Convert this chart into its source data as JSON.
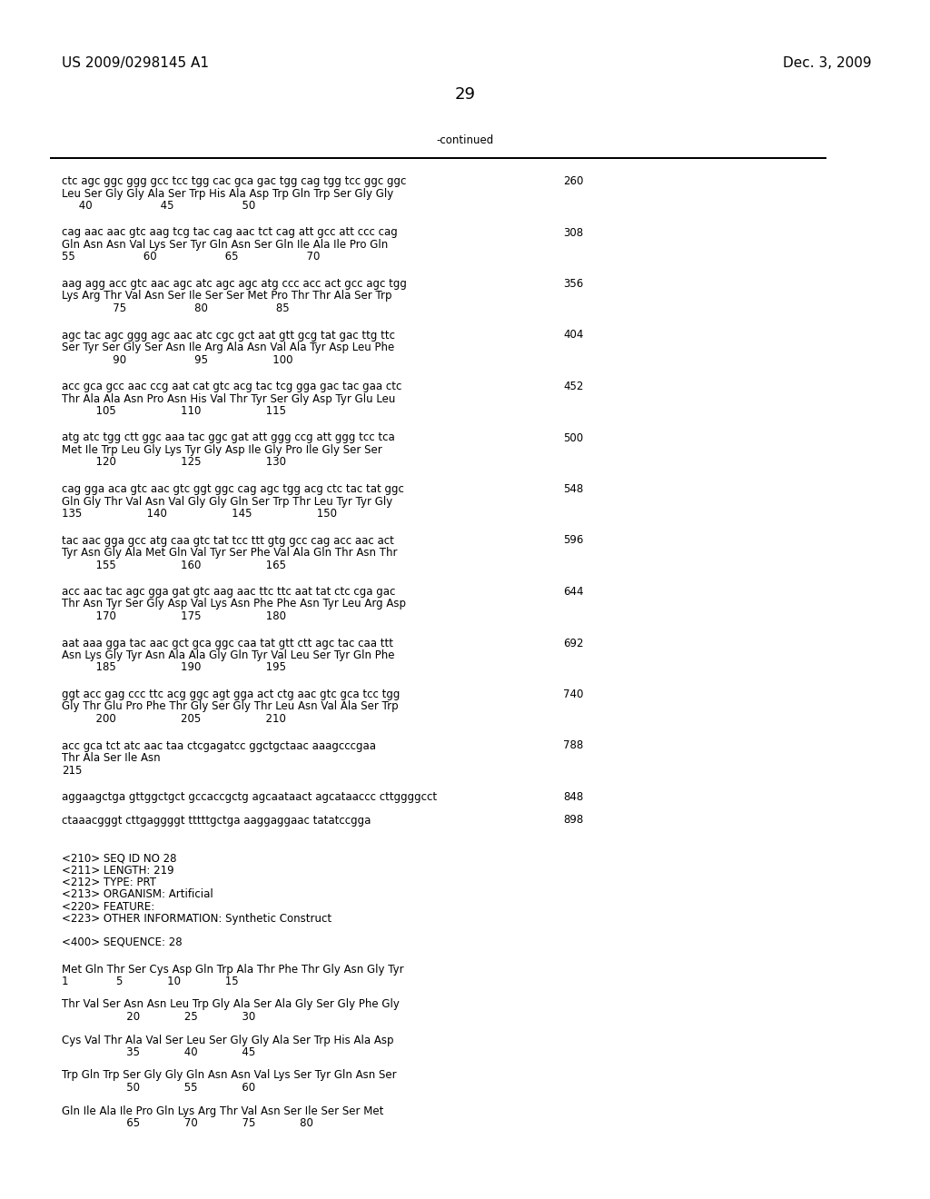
{
  "header_left": "US 2009/0298145 A1",
  "header_right": "Dec. 3, 2009",
  "page_number": "29",
  "continued_label": "-continued",
  "background_color": "#ffffff",
  "text_color": "#000000",
  "mono_font": "Courier New",
  "sans_font": "DejaVu Sans",
  "header_fontsize": 11,
  "page_fontsize": 13,
  "body_fontsize": 8.5,
  "seq_blocks": [
    {
      "dna": "ctc agc ggc ggg gcc tcc tgg cac gca gac tgg cag tgg tcc ggc ggc",
      "aa": "Leu Ser Gly Gly Ala Ser Trp His Ala Asp Trp Gln Trp Ser Gly Gly",
      "nums": "     40                    45                    50",
      "num_right": "260"
    },
    {
      "dna": "cag aac aac gtc aag tcg tac cag aac tct cag att gcc att ccc cag",
      "aa": "Gln Asn Asn Val Lys Ser Tyr Gln Asn Ser Gln Ile Ala Ile Pro Gln",
      "nums": "55                    60                    65                    70",
      "num_right": "308"
    },
    {
      "dna": "aag agg acc gtc aac agc atc agc agc atg ccc acc act gcc agc tgg",
      "aa": "Lys Arg Thr Val Asn Ser Ile Ser Ser Met Pro Thr Thr Ala Ser Trp",
      "nums": "               75                    80                    85",
      "num_right": "356"
    },
    {
      "dna": "agc tac agc ggg agc aac atc cgc gct aat gtt gcg tat gac ttg ttc",
      "aa": "Ser Tyr Ser Gly Ser Asn Ile Arg Ala Asn Val Ala Tyr Asp Leu Phe",
      "nums": "               90                    95                   100",
      "num_right": "404"
    },
    {
      "dna": "acc gca gcc aac ccg aat cat gtc acg tac tcg gga gac tac gaa ctc",
      "aa": "Thr Ala Ala Asn Pro Asn His Val Thr Tyr Ser Gly Asp Tyr Glu Leu",
      "nums": "          105                   110                   115",
      "num_right": "452"
    },
    {
      "dna": "atg atc tgg ctt ggc aaa tac ggc gat att ggg ccg att ggg tcc tca",
      "aa": "Met Ile Trp Leu Gly Lys Tyr Gly Asp Ile Gly Pro Ile Gly Ser Ser",
      "nums": "          120                   125                   130",
      "num_right": "500"
    },
    {
      "dna": "cag gga aca gtc aac gtc ggt ggc cag agc tgg acg ctc tac tat ggc",
      "aa": "Gln Gly Thr Val Asn Val Gly Gly Gln Ser Trp Thr Leu Tyr Tyr Gly",
      "nums": "135                   140                   145                   150",
      "num_right": "548"
    },
    {
      "dna": "tac aac gga gcc atg caa gtc tat tcc ttt gtg gcc cag acc aac act",
      "aa": "Tyr Asn Gly Ala Met Gln Val Tyr Ser Phe Val Ala Gln Thr Asn Thr",
      "nums": "          155                   160                   165",
      "num_right": "596"
    },
    {
      "dna": "acc aac tac agc gga gat gtc aag aac ttc ttc aat tat ctc cga gac",
      "aa": "Thr Asn Tyr Ser Gly Asp Val Lys Asn Phe Phe Asn Tyr Leu Arg Asp",
      "nums": "          170                   175                   180",
      "num_right": "644"
    },
    {
      "dna": "aat aaa gga tac aac gct gca ggc caa tat gtt ctt agc tac caa ttt",
      "aa": "Asn Lys Gly Tyr Asn Ala Ala Gly Gln Tyr Val Leu Ser Tyr Gln Phe",
      "nums": "          185                   190                   195",
      "num_right": "692"
    },
    {
      "dna": "ggt acc gag ccc ttc acg ggc agt gga act ctg aac gtc gca tcc tgg",
      "aa": "Gly Thr Glu Pro Phe Thr Gly Ser Gly Thr Leu Asn Val Ala Ser Trp",
      "nums": "          200                   205                   210",
      "num_right": "740"
    },
    {
      "dna": "acc gca tct atc aac taa ctcgagatcc ggctgctaac aaagcccgaa",
      "aa": "Thr Ala Ser Ile Asn",
      "nums": "215",
      "num_right": "788"
    }
  ],
  "dna_only_blocks": [
    {
      "dna": "aggaagctga gttggctgct gccaccgctg agcaataact agcataaccc cttggggcct",
      "num_right": "848"
    },
    {
      "dna": "ctaaacgggt cttgaggggt tttttgctga aaggaggaac tatatccgga",
      "num_right": "898"
    }
  ],
  "meta_lines": [
    "<210> SEQ ID NO 28",
    "<211> LENGTH: 219",
    "<212> TYPE: PRT",
    "<213> ORGANISM: Artificial",
    "<220> FEATURE:",
    "<223> OTHER INFORMATION: Synthetic Construct"
  ],
  "seq400_label": "<400> SEQUENCE: 28",
  "prot_blocks": [
    {
      "seq": "Met Gln Thr Ser Cys Asp Gln Trp Ala Thr Phe Thr Gly Asn Gly Tyr",
      "nums": "1              5             10             15"
    },
    {
      "seq": "Thr Val Ser Asn Asn Leu Trp Gly Ala Ser Ala Gly Ser Gly Phe Gly",
      "nums": "                   20             25             30"
    },
    {
      "seq": "Cys Val Thr Ala Val Ser Leu Ser Gly Gly Ala Ser Trp His Ala Asp",
      "nums": "                   35             40             45"
    },
    {
      "seq": "Trp Gln Trp Ser Gly Gly Gln Asn Asn Val Lys Ser Tyr Gln Asn Ser",
      "nums": "                   50             55             60"
    },
    {
      "seq": "Gln Ile Ala Ile Pro Gln Lys Arg Thr Val Asn Ser Ile Ser Ser Met",
      "nums": "                   65             70             75             80"
    }
  ]
}
